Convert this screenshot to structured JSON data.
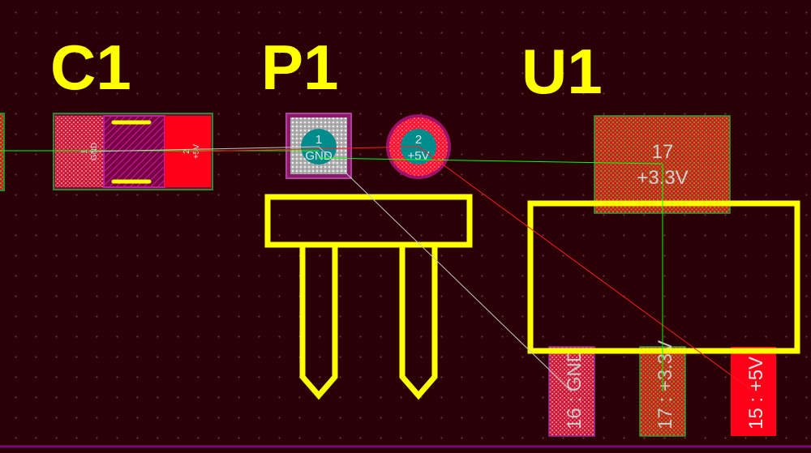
{
  "colors": {
    "board": "#2a0006",
    "silkscreen": "#ffff00",
    "pad_top": "#ff0018",
    "ratsnest_net": "#00ff00",
    "ratsnest_5v": "#ff2020",
    "ratsnest_gnd": "#c8c8c8",
    "pad_label": "#d0d0d0",
    "via_fill": "#008c8c"
  },
  "components": {
    "c1": {
      "designator": "C1",
      "pad1": {
        "number": "1",
        "net": "GND"
      },
      "pad2": {
        "number": "2",
        "net": "+5V"
      }
    },
    "p1": {
      "designator": "P1",
      "pad1": {
        "number": "1",
        "net": "GND"
      },
      "pad2": {
        "number": "2",
        "net": "+5V"
      }
    },
    "u1": {
      "designator": "U1",
      "pad17_top": {
        "number": "17",
        "net": "+3.3V"
      },
      "pad16": {
        "label": "16 : GND"
      },
      "pad17": {
        "label": "17 : +3.3V"
      },
      "pad15": {
        "label": "15 : +5V"
      }
    }
  }
}
